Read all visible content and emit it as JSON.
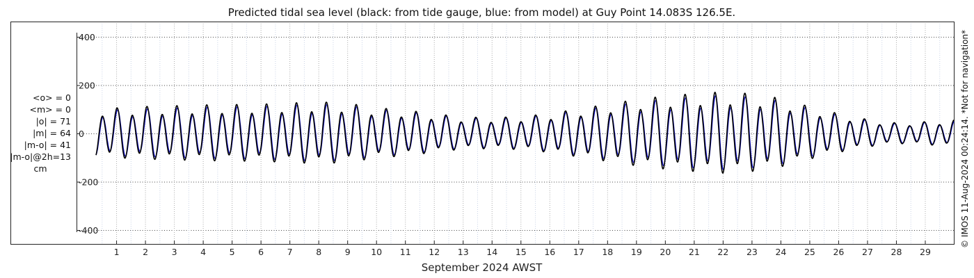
{
  "chart_data": {
    "type": "line",
    "title": "Predicted tidal sea level (black: from tide gauge, blue: from model) at Guy Point 14.083S 126.5E.",
    "xlabel": "September 2024 AWST",
    "ylabel": "",
    "ylim": [
      -420,
      400
    ],
    "xlim": [
      0.3,
      30.0
    ],
    "yticks": [
      -400,
      -200,
      0,
      200,
      400
    ],
    "ytick_labels": [
      "-400",
      "-200",
      "0",
      "200",
      "400"
    ],
    "xticks": [
      1,
      2,
      3,
      4,
      5,
      6,
      7,
      8,
      9,
      10,
      11,
      12,
      13,
      14,
      15,
      16,
      17,
      18,
      19,
      20,
      21,
      22,
      23,
      24,
      25,
      26,
      27,
      28,
      29
    ],
    "xtick_labels": [
      "1",
      "2",
      "3",
      "4",
      "5",
      "6",
      "7",
      "8",
      "9",
      "10",
      "11",
      "12",
      "13",
      "14",
      "15",
      "16",
      "17",
      "18",
      "19",
      "20",
      "21",
      "22",
      "23",
      "24",
      "25",
      "26",
      "27",
      "28",
      "29"
    ],
    "grid": true,
    "units": "cm",
    "series": [
      {
        "name": "from tide gauge",
        "color": "#000000",
        "envelope_day": [
          0.3,
          2,
          4,
          6,
          8,
          9,
          10,
          11,
          12,
          13,
          14,
          15,
          16,
          17,
          18,
          19,
          20,
          21,
          22,
          23,
          24,
          25,
          26,
          27,
          28,
          29,
          30
        ],
        "envelope_amp": [
          105,
          115,
          122,
          125,
          135,
          130,
          110,
          100,
          85,
          70,
          68,
          72,
          85,
          105,
          125,
          145,
          160,
          170,
          178,
          170,
          150,
          115,
          85,
          60,
          45,
          50,
          58
        ]
      },
      {
        "name": "from model",
        "color": "#1010c8",
        "envelope_day": [
          0.3,
          2,
          4,
          6,
          8,
          9,
          10,
          11,
          12,
          13,
          14,
          15,
          16,
          17,
          18,
          19,
          20,
          21,
          22,
          23,
          24,
          25,
          26,
          27,
          28,
          29,
          30
        ],
        "envelope_amp": [
          98,
          105,
          112,
          115,
          125,
          120,
          102,
          94,
          80,
          66,
          64,
          68,
          80,
          98,
          115,
          132,
          145,
          155,
          162,
          155,
          138,
          106,
          79,
          56,
          42,
          47,
          54
        ]
      }
    ]
  },
  "stats": {
    "mean_o": "<o> = 0",
    "mean_m": "<m> = 0",
    "abs_o": "|o| = 71",
    "abs_m": "|m| = 64",
    "abs_mo": "|m-o| = 41",
    "abs_mo_2h": "|m-o|@2h=13",
    "unit": "cm"
  },
  "credit": "© IMOS 11-Aug-2024 00:24:14. *Not for navigation*"
}
